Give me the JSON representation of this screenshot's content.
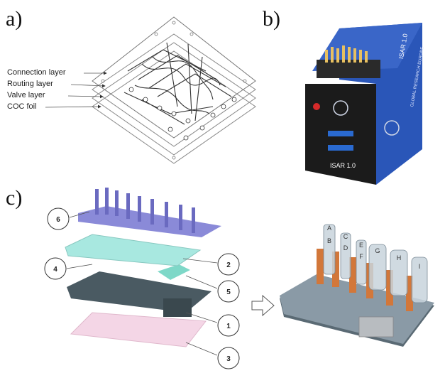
{
  "panels": {
    "a": "a)",
    "b": "b)",
    "c": "c)"
  },
  "layers": [
    "Connection layer",
    "Routing layer",
    "Valve layer",
    "COC foil"
  ],
  "device": {
    "front_label": "ISAR 1.0",
    "side_label": "ISAR 1.0",
    "side_text": [
      "GLOBAL RESEARCH",
      "EUROPE"
    ],
    "body_color": "#1b1b1b",
    "side_color": "#2a56b8"
  },
  "callouts": [
    "6",
    "2",
    "4",
    "5",
    "1",
    "3"
  ],
  "cylinders": [
    "A",
    "B",
    "C",
    "D",
    "E",
    "F",
    "G",
    "H",
    "I"
  ],
  "colors": {
    "top_connector": "#8a8ad8",
    "routing_plate": "#a8e8e0",
    "base_plate": "#4a5a62",
    "foil": "#f4d6e6",
    "valve_part": "#7ed8c8",
    "orange": "#d2773a"
  }
}
